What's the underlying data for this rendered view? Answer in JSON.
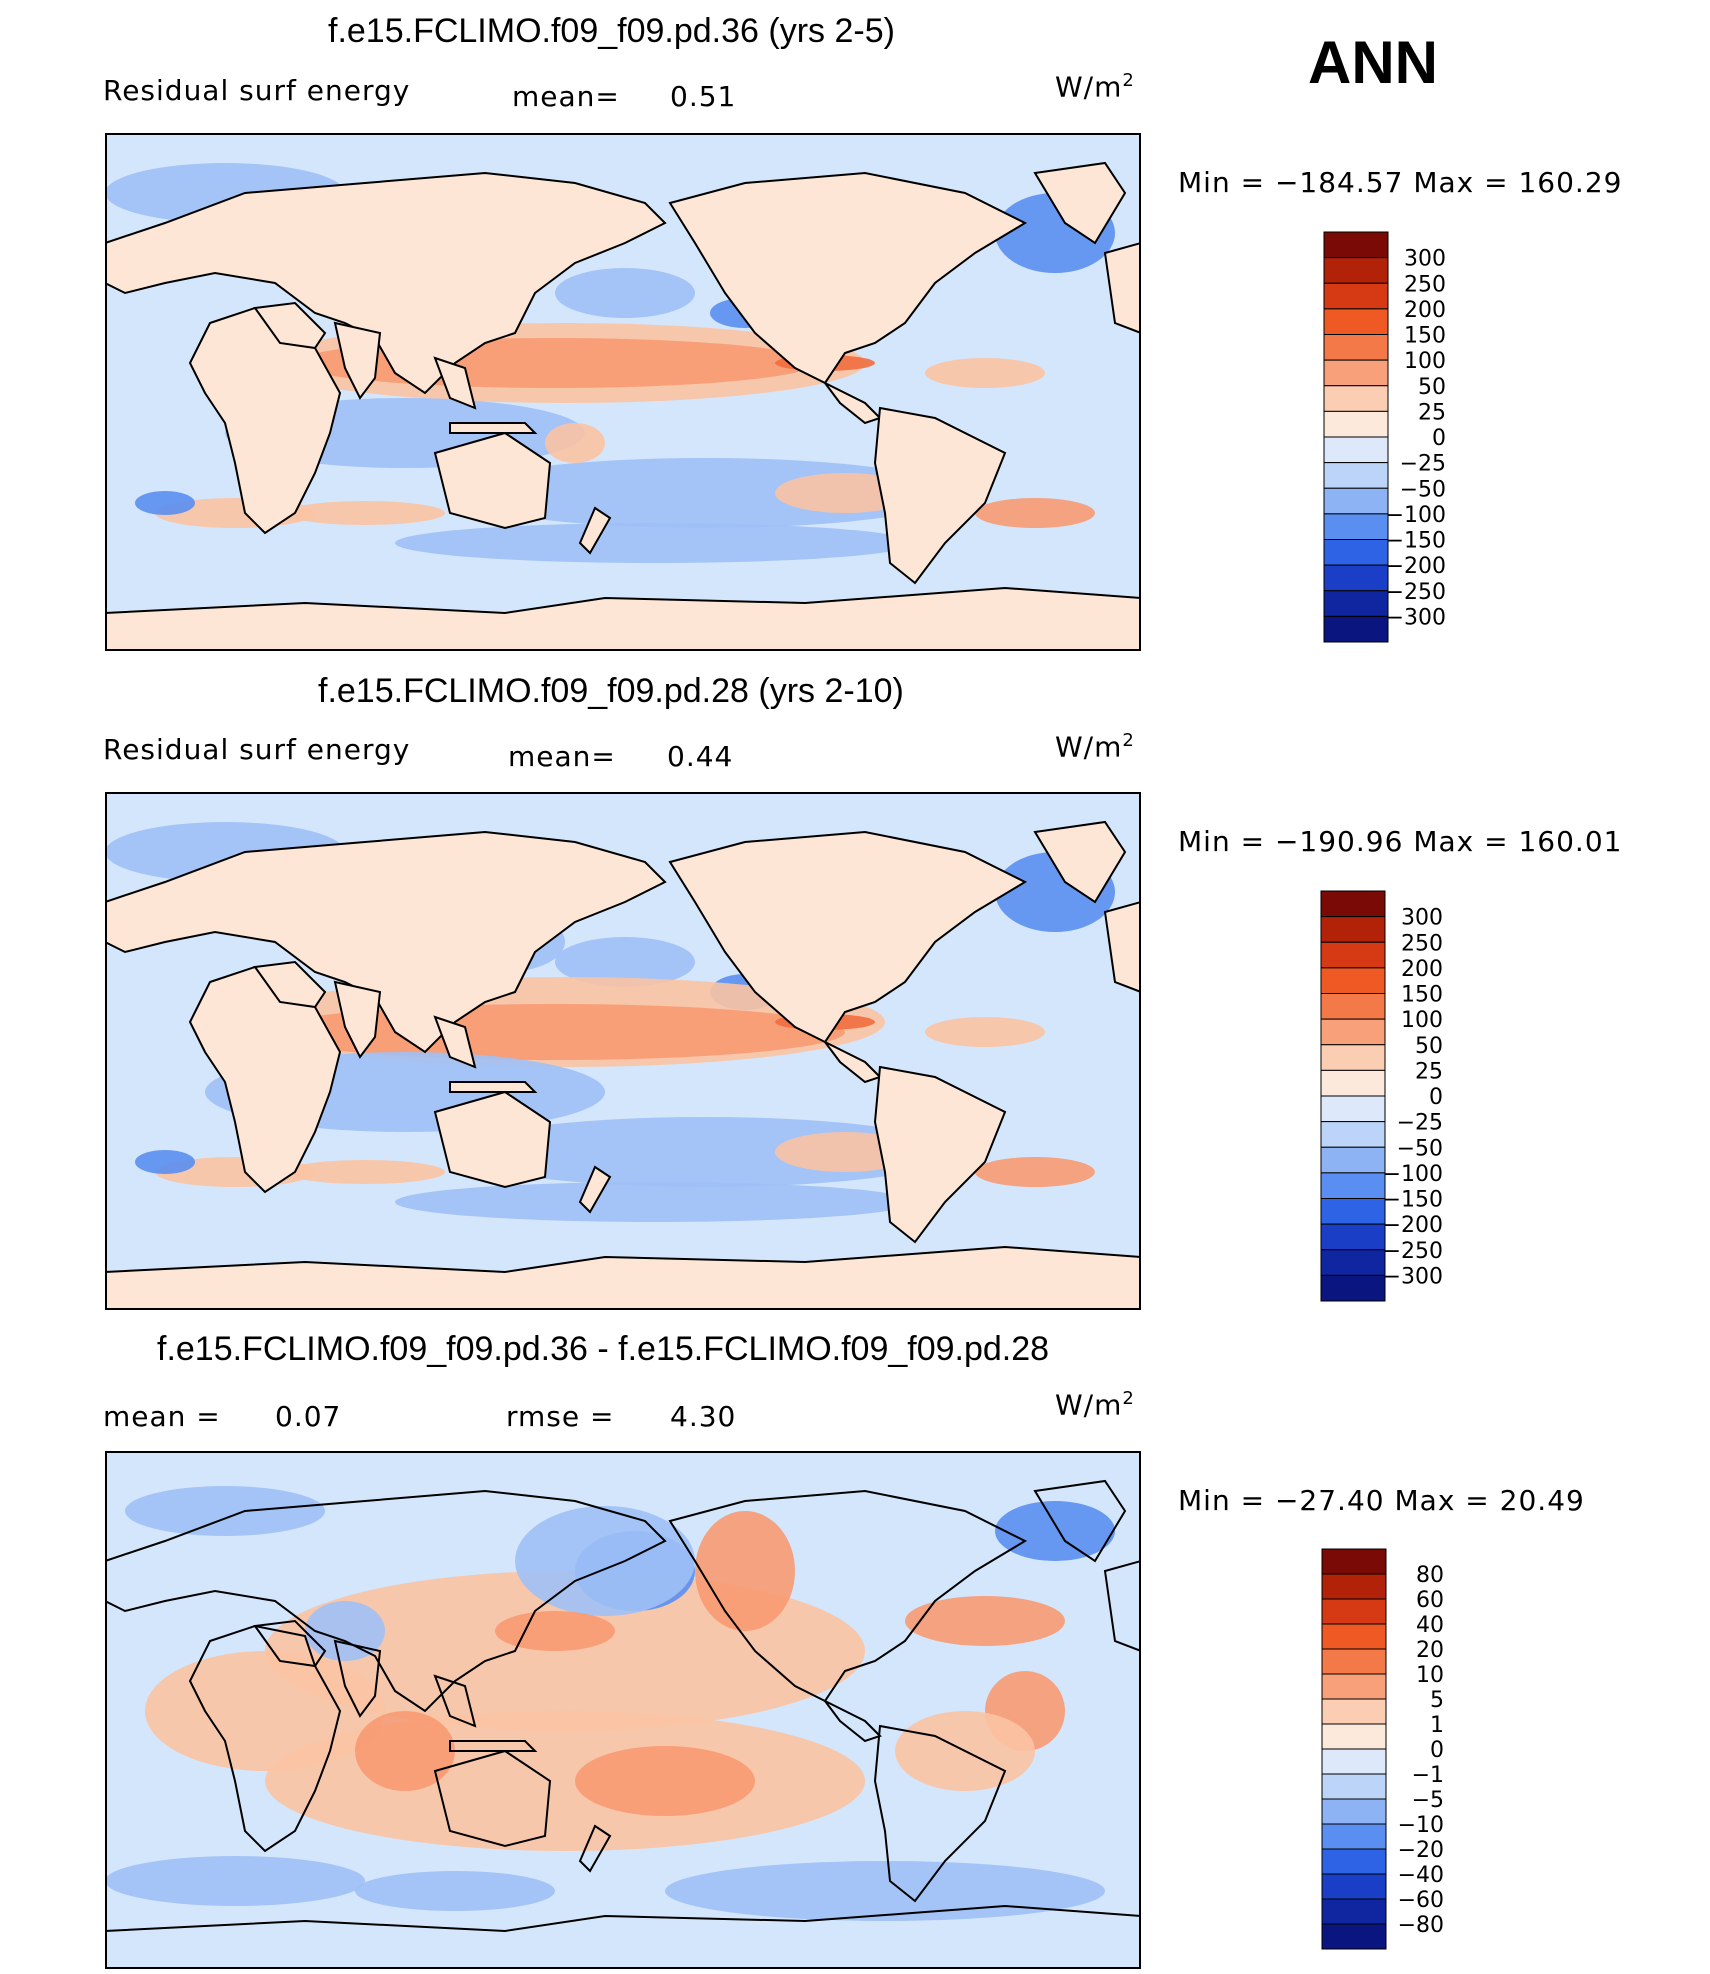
{
  "season": "ANN",
  "chart_data": [
    {
      "type": "heatmap",
      "title": "f.e15.FCLIMO.f09_f09.pd.36 (yrs 2-5)",
      "variable": "Residual surf energy",
      "mean_label": "mean=",
      "mean_value": "0.51",
      "units": "W/m",
      "units_exp": "2",
      "min_label": "Min",
      "max_label": "Max",
      "eq": "=",
      "min_value": "−184.57",
      "max_value": "160.29",
      "min_num": -184.57,
      "max_num": 160.29,
      "colorbar_levels": [
        "300",
        "250",
        "200",
        "150",
        "100",
        "50",
        "25",
        "0",
        "−25",
        "−50",
        "−100",
        "−150",
        "−200",
        "−250",
        "−300"
      ]
    },
    {
      "type": "heatmap",
      "title": "f.e15.FCLIMO.f09_f09.pd.28 (yrs 2-10)",
      "variable": "Residual surf energy",
      "mean_label": "mean=",
      "mean_value": "0.44",
      "units": "W/m",
      "units_exp": "2",
      "min_label": "Min",
      "max_label": "Max",
      "eq": "=",
      "min_value": "−190.96",
      "max_value": "160.01",
      "min_num": -190.96,
      "max_num": 160.01,
      "colorbar_levels": [
        "300",
        "250",
        "200",
        "150",
        "100",
        "50",
        "25",
        "0",
        "−25",
        "−50",
        "−100",
        "−150",
        "−200",
        "−250",
        "−300"
      ]
    },
    {
      "type": "heatmap",
      "title": "f.e15.FCLIMO.f09_f09.pd.36 - f.e15.FCLIMO.f09_f09.pd.28",
      "mean_label": "mean  =",
      "mean_value": "0.07",
      "rmse_label": "rmse  =",
      "rmse_value": "4.30",
      "units": "W/m",
      "units_exp": "2",
      "min_label": "Min",
      "max_label": "Max",
      "eq": "=",
      "min_value": "−27.40",
      "max_value": "20.49",
      "min_num": -27.4,
      "max_num": 20.49,
      "colorbar_levels": [
        "80",
        "60",
        "40",
        "20",
        "10",
        "5",
        "1",
        "0",
        "−1",
        "−5",
        "−10",
        "−20",
        "−40",
        "−60",
        "−80"
      ]
    }
  ],
  "colors": {
    "colorbar": [
      "#7a0a05",
      "#b22208",
      "#d63a14",
      "#ef5a24",
      "#f37a48",
      "#f8a07a",
      "#fbcdb2",
      "#fde9dc",
      "#dde9fb",
      "#bcd4f8",
      "#8db3f4",
      "#5a8ef0",
      "#2f63e6",
      "#1a3fc6",
      "#0f26a0",
      "#0a1580"
    ],
    "land": "#fde6d6",
    "ocean_base": "#d4e6fb",
    "warm_light": "#fbc3a3",
    "warm_mid": "#f79a72",
    "warm_strong": "#ef6d3e",
    "cool_mid": "#9fc0f6",
    "cool_strong": "#5a8ef0",
    "cool_deep": "#2e5fe0",
    "coast": "#000000"
  }
}
